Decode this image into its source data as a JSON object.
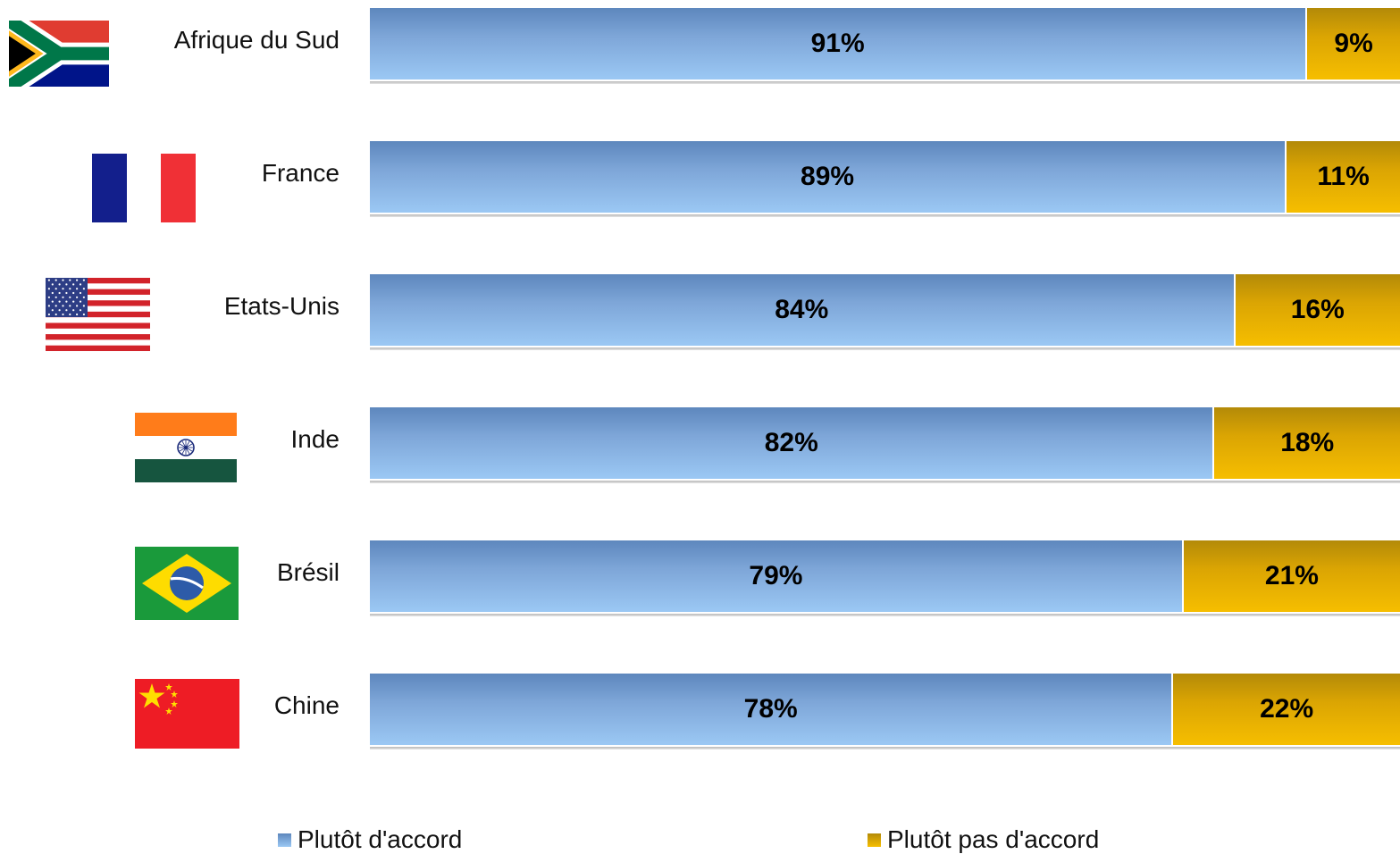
{
  "chart_data": {
    "type": "bar",
    "orientation": "horizontal",
    "stacked": true,
    "categories": [
      "Afrique du Sud",
      "France",
      "Etats-Unis",
      "Inde",
      "Brésil",
      "Chine"
    ],
    "series": [
      {
        "name": "Plutôt d'accord",
        "values": [
          91,
          89,
          84,
          82,
          79,
          78
        ],
        "labels": [
          "91%",
          "89%",
          "84%",
          "82%",
          "79%",
          "78%"
        ],
        "color": "#7ea6d8"
      },
      {
        "name": "Plutôt pas d'accord",
        "values": [
          9,
          11,
          16,
          18,
          21,
          22
        ],
        "labels": [
          "9%",
          "11%",
          "16%",
          "18%",
          "21%",
          "22%"
        ],
        "color": "#e6ad00"
      }
    ],
    "xlim": [
      0,
      100
    ],
    "grid": false,
    "legend_position": "bottom",
    "flag_icons": [
      "south-africa-flag-icon",
      "france-flag-icon",
      "usa-flag-icon",
      "india-flag-icon",
      "brazil-flag-icon",
      "china-flag-icon"
    ]
  }
}
